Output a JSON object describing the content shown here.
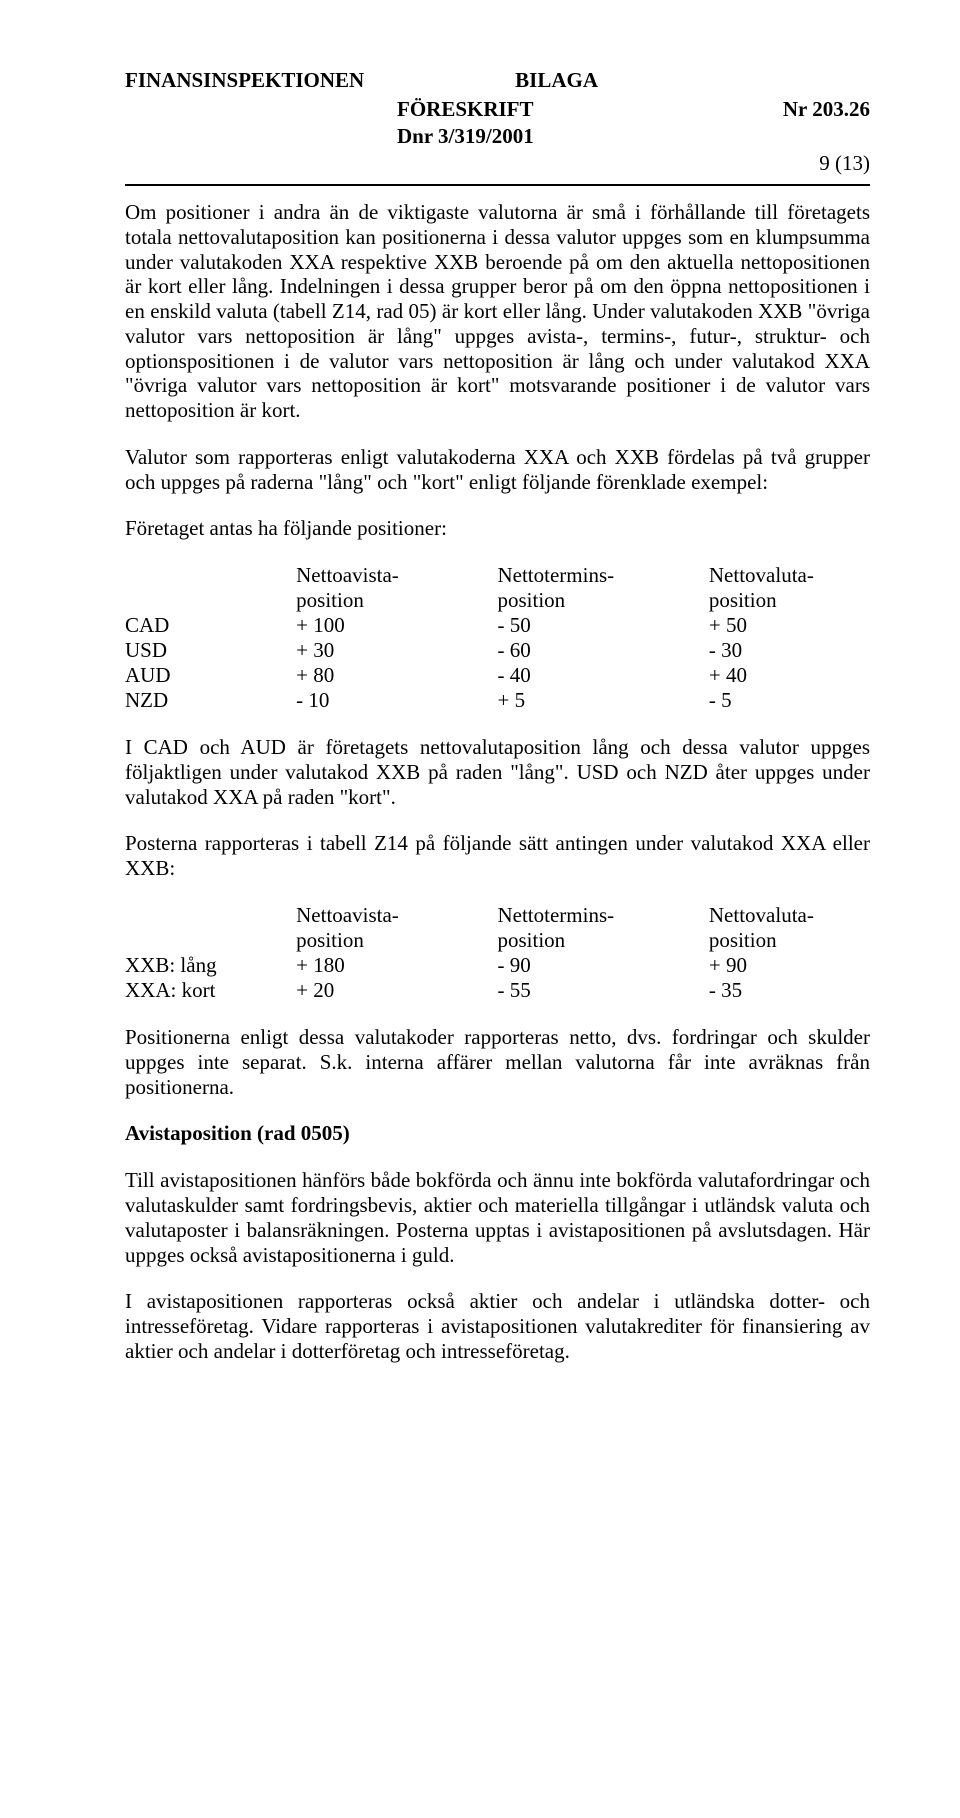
{
  "header": {
    "org": "FINANSINSPEKTIONEN",
    "doc_type": "BILAGA",
    "subtitle": "FÖRESKRIFT",
    "nr": "Nr 203.26",
    "dnr": "Dnr 3/319/2001",
    "page": "9 (13)"
  },
  "paragraphs": {
    "p1": "Om positioner i andra än de viktigaste valutorna är små i förhållande till företagets totala nettovalutaposition kan positionerna i dessa valutor uppges som en klumpsumma under valutakoden XXA respektive XXB beroende på om den aktuella nettopositionen är kort eller lång. Indelningen i dessa grupper beror på om den öppna nettopositionen i en enskild valuta (tabell Z14, rad 05) är kort eller lång. Under valutakoden XXB \"övriga valutor vars nettoposition är lång\" uppges avista-, termins-, futur-, struktur- och optionspositionen i de valutor vars nettoposition är lång och under valutakod XXA \"övriga valutor vars nettoposition är kort\" motsvarande positioner i de valutor vars nettoposition är kort.",
    "p2": "Valutor som rapporteras enligt valutakoderna XXA och XXB fördelas på två grupper och uppges på raderna \"lång\" och \"kort\" enligt följande förenklade exempel:",
    "p3": "Företaget antas ha följande positioner:",
    "p4": "I CAD och AUD är företagets nettovalutaposition lång och dessa valutor uppges följaktligen under valutakod XXB på raden \"lång\". USD och NZD åter uppges under valutakod XXA på raden \"kort\".",
    "p5": "Posterna rapporteras i tabell Z14 på följande sätt antingen under valutakod XXA eller XXB:",
    "p6": "Positionerna enligt dessa valutakoder rapporteras netto, dvs. fordringar och skulder uppges inte separat. S.k. interna affärer mellan valutorna får inte avräknas från positionerna.",
    "heading": "Avistaposition  (rad 0505)",
    "p7": "Till avistapositionen hänförs både bokförda och ännu inte bokförda valutafordringar och valutaskulder samt fordringsbevis, aktier och materiella tillgångar i utländsk valuta och valutaposter i balansräkningen. Posterna upptas i avistapositionen på avslutsdagen. Här uppges också avistapositionerna i guld.",
    "p8": "I avistapositionen rapporteras också aktier och andelar i utländska dotter- och intresseföretag. Vidare rapporteras i avistapositionen valutakrediter för finansiering av aktier och andelar i dotterföretag och intresseföretag."
  },
  "table1": {
    "headers": {
      "h1a": "Nettoavista-",
      "h1b": "position",
      "h2a": "Nettotermins-",
      "h2b": "position",
      "h3a": "Nettovaluta-",
      "h3b": "position"
    },
    "rows": [
      {
        "label": "CAD",
        "v1": "+ 100",
        "v2": "- 50",
        "v3": "+ 50"
      },
      {
        "label": "USD",
        "v1": "+  30",
        "v2": "- 60",
        "v3": "- 30"
      },
      {
        "label": "AUD",
        "v1": "+  80",
        "v2": "- 40",
        "v3": "+ 40"
      },
      {
        "label": "NZD",
        "v1": "-  10",
        "v2": "+  5",
        "v3": "-  5"
      }
    ]
  },
  "table2": {
    "headers": {
      "h1a": "Nettoavista-",
      "h1b": "position",
      "h2a": "Nettotermins-",
      "h2b": "position",
      "h3a": "Nettovaluta-",
      "h3b": "position"
    },
    "rows": [
      {
        "label": "XXB: lång",
        "v1": "+ 180",
        "v2": "- 90",
        "v3": "+ 90"
      },
      {
        "label": "XXA: kort",
        "v1": "+  20",
        "v2": "- 55",
        "v3": "- 35"
      }
    ]
  }
}
